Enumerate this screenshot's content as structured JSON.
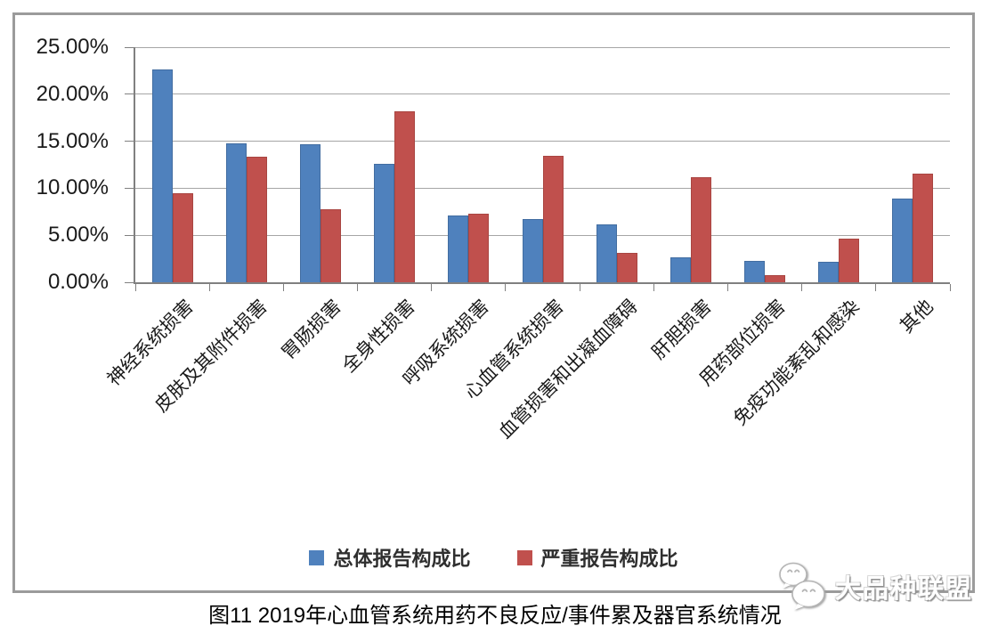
{
  "caption": "图11 2019年心血管系统用药不良反应/事件累及器官系统情况",
  "watermark": {
    "text": "大品种联盟",
    "icon": "wechat-chat-bubbles-icon"
  },
  "colors": {
    "bar_blue": "#4F81BD",
    "bar_red": "#C0504D",
    "gridline": "#A6A6A6",
    "axis": "#808080",
    "frame_border": "#9B9B9B"
  },
  "chart_data": {
    "type": "bar",
    "title": "",
    "xlabel": "",
    "ylabel": "",
    "grid": true,
    "legend_position": "bottom",
    "categories": [
      "神经系统损害",
      "皮肤及其附件损害",
      "胃肠损害",
      "全身性损害",
      "呼吸系统损害",
      "心血管系统损害",
      "血管损害和出凝血障碍",
      "肝胆损害",
      "用药部位损害",
      "免疫功能紊乱和感染",
      "其他"
    ],
    "series": [
      {
        "name": "总体报告构成比",
        "color": "#4F81BD",
        "values": [
          22.5,
          14.7,
          14.6,
          12.5,
          7.0,
          6.6,
          6.1,
          2.6,
          2.2,
          2.1,
          8.8
        ]
      },
      {
        "name": "严重报告构成比",
        "color": "#C0504D",
        "values": [
          9.4,
          13.3,
          7.7,
          18.1,
          7.2,
          13.4,
          3.0,
          11.1,
          0.7,
          4.5,
          11.5
        ]
      }
    ],
    "y_axis": {
      "min": 0,
      "max": 25,
      "step": 5,
      "unit": "%",
      "tick_labels": [
        "0.00%",
        "5.00%",
        "10.00%",
        "15.00%",
        "20.00%",
        "25.00%"
      ]
    }
  }
}
